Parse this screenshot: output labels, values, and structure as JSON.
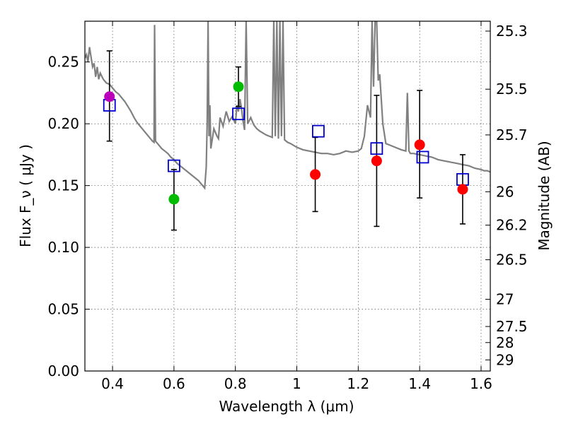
{
  "chart_data": {
    "type": "scatter",
    "title": "",
    "xlabel": "Wavelength  λ (μm)",
    "ylabel": "Flux  F_ν  ( μJy )",
    "ylabel_right": "Magnitude (AB)",
    "xlim": [
      0.31,
      1.63
    ],
    "ylim": [
      0.0,
      0.283
    ],
    "grid": true,
    "x_ticks": [
      0.4,
      0.6,
      0.8,
      1.0,
      1.2,
      1.4,
      1.6
    ],
    "x_tick_labels": [
      "0.4",
      "0.6",
      "0.8",
      "1",
      "1.2",
      "1.4",
      "1.6"
    ],
    "y_ticks": [
      0.0,
      0.05,
      0.1,
      0.15,
      0.2,
      0.25
    ],
    "y_tick_labels": [
      "0.00",
      "0.05",
      "0.10",
      "0.15",
      "0.20",
      "0.25"
    ],
    "right_axis_labels": [
      "25.3",
      "25.5",
      "25.7",
      "26",
      "26.2",
      "26.5",
      "27",
      "27.5",
      "28",
      "29"
    ],
    "right_axis_positions": [
      0.275,
      0.228,
      0.191,
      0.145,
      0.118,
      0.09,
      0.058,
      0.036,
      0.023,
      0.009
    ],
    "model_spectrum": {
      "color": "#808080",
      "x": [
        0.31,
        0.315,
        0.32,
        0.325,
        0.33,
        0.335,
        0.34,
        0.345,
        0.35,
        0.355,
        0.36,
        0.37,
        0.38,
        0.39,
        0.4,
        0.41,
        0.42,
        0.43,
        0.44,
        0.45,
        0.46,
        0.47,
        0.48,
        0.49,
        0.5,
        0.51,
        0.52,
        0.53,
        0.535,
        0.537,
        0.54,
        0.55,
        0.56,
        0.57,
        0.58,
        0.59,
        0.6,
        0.61,
        0.62,
        0.63,
        0.64,
        0.65,
        0.66,
        0.67,
        0.68,
        0.69,
        0.7,
        0.705,
        0.708,
        0.711,
        0.714,
        0.717,
        0.72,
        0.73,
        0.74,
        0.745,
        0.75,
        0.76,
        0.77,
        0.78,
        0.79,
        0.8,
        0.805,
        0.81,
        0.815,
        0.82,
        0.825,
        0.83,
        0.835,
        0.84,
        0.85,
        0.86,
        0.87,
        0.88,
        0.9,
        0.92,
        0.925,
        0.93,
        0.935,
        0.94,
        0.945,
        0.95,
        0.955,
        0.96,
        0.97,
        0.98,
        1.0,
        1.02,
        1.04,
        1.06,
        1.08,
        1.1,
        1.12,
        1.14,
        1.16,
        1.18,
        1.2,
        1.21,
        1.22,
        1.23,
        1.24,
        1.245,
        1.25,
        1.255,
        1.26,
        1.265,
        1.27,
        1.275,
        1.28,
        1.29,
        1.3,
        1.32,
        1.34,
        1.355,
        1.36,
        1.365,
        1.37,
        1.38,
        1.4,
        1.42,
        1.44,
        1.46,
        1.48,
        1.5,
        1.52,
        1.54,
        1.56,
        1.58,
        1.6,
        1.61,
        1.62,
        1.63
      ],
      "y": [
        0.253,
        0.256,
        0.25,
        0.262,
        0.254,
        0.246,
        0.249,
        0.238,
        0.246,
        0.236,
        0.241,
        0.236,
        0.233,
        0.232,
        0.229,
        0.226,
        0.224,
        0.221,
        0.218,
        0.214,
        0.21,
        0.205,
        0.201,
        0.198,
        0.195,
        0.192,
        0.189,
        0.186,
        0.185,
        0.28,
        0.186,
        0.183,
        0.18,
        0.178,
        0.176,
        0.173,
        0.171,
        0.168,
        0.166,
        0.164,
        0.162,
        0.16,
        0.158,
        0.156,
        0.154,
        0.151,
        0.148,
        0.165,
        0.2,
        0.283,
        0.19,
        0.215,
        0.18,
        0.196,
        0.19,
        0.188,
        0.205,
        0.198,
        0.21,
        0.202,
        0.206,
        0.2,
        0.215,
        0.21,
        0.22,
        0.212,
        0.202,
        0.195,
        0.283,
        0.2,
        0.205,
        0.199,
        0.196,
        0.194,
        0.191,
        0.189,
        0.283,
        0.19,
        0.283,
        0.188,
        0.283,
        0.19,
        0.283,
        0.187,
        0.185,
        0.184,
        0.181,
        0.179,
        0.178,
        0.177,
        0.176,
        0.176,
        0.175,
        0.176,
        0.178,
        0.177,
        0.178,
        0.18,
        0.19,
        0.215,
        0.205,
        0.283,
        0.23,
        0.283,
        0.283,
        0.235,
        0.24,
        0.22,
        0.2,
        0.184,
        0.183,
        0.181,
        0.179,
        0.178,
        0.225,
        0.178,
        0.176,
        0.176,
        0.175,
        0.174,
        0.173,
        0.171,
        0.17,
        0.169,
        0.168,
        0.167,
        0.166,
        0.164,
        0.163,
        0.162,
        0.162,
        0.161
      ]
    },
    "model_photometry": {
      "name": "",
      "color": "#0000cc",
      "x": [
        0.39,
        0.6,
        0.81,
        1.07,
        1.26,
        1.41,
        1.54
      ],
      "y": [
        0.215,
        0.166,
        0.208,
        0.194,
        0.18,
        0.173,
        0.155
      ]
    },
    "observed": {
      "name": "",
      "x": [
        0.39,
        0.6,
        0.81,
        1.06,
        1.26,
        1.4,
        1.54
      ],
      "y": [
        0.222,
        0.139,
        0.23,
        0.159,
        0.17,
        0.183,
        0.147
      ],
      "y_upper": [
        0.259,
        0.163,
        0.246,
        0.189,
        0.223,
        0.227,
        0.175
      ],
      "y_lower": [
        0.186,
        0.114,
        0.214,
        0.129,
        0.117,
        0.14,
        0.119
      ],
      "colors": [
        "#bb00bb",
        "#00bb00",
        "#00bb00",
        "#ff0000",
        "#ff0000",
        "#ff0000",
        "#ff0000"
      ]
    }
  }
}
